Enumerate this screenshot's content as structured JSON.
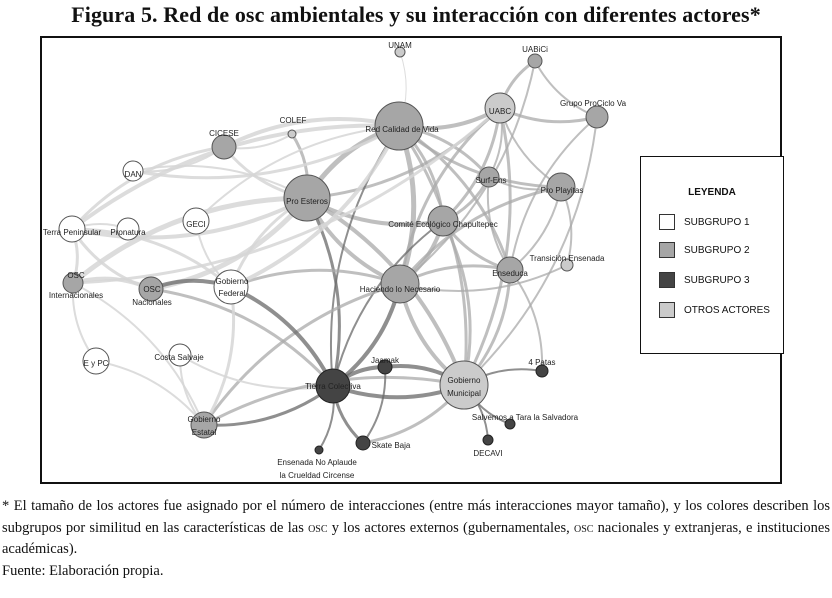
{
  "figure": {
    "title": "Figura 5. Red de osc ambientales y su interacción con diferentes actores*"
  },
  "colors": {
    "subgrupo_1": "#ffffff",
    "subgrupo_2": "#a6a6a6",
    "subgrupo_3": "#444444",
    "otros": "#cbcbcb",
    "edge_light": "#d6d6d6",
    "edge_mid": "#a9a9a9",
    "edge_dark": "#6a6a6a"
  },
  "legend": {
    "title": "LEYENDA",
    "items": [
      {
        "label": "SUBGRUPO 1",
        "group": "subgrupo_1"
      },
      {
        "label": "SUBGRUPO 2",
        "group": "subgrupo_2"
      },
      {
        "label": "SUBGRUPO 3",
        "group": "subgrupo_3"
      },
      {
        "label": "OTROS ACTORES",
        "group": "otros"
      }
    ]
  },
  "nodes": [
    {
      "id": "unam",
      "label": "UNAM",
      "group": "otros"
    },
    {
      "id": "uabici",
      "label": "UABiCi",
      "group": "subgrupo_2"
    },
    {
      "id": "uabc",
      "label": "UABC",
      "group": "otros"
    },
    {
      "id": "proci",
      "label": "Grupo ProCiclo Va",
      "group": "subgrupo_2"
    },
    {
      "id": "colef",
      "label": "COLEF",
      "group": "otros"
    },
    {
      "id": "rcv",
      "label": "Red Calidad de Vida",
      "group": "subgrupo_2"
    },
    {
      "id": "cicese",
      "label": "CICESE",
      "group": "subgrupo_2"
    },
    {
      "id": "dan",
      "label": "DAN",
      "group": "subgrupo_1"
    },
    {
      "id": "proest",
      "label": "Pro Esteros",
      "group": "subgrupo_2"
    },
    {
      "id": "surf",
      "label": "Surf-Ens",
      "group": "subgrupo_2"
    },
    {
      "id": "proplay",
      "label": "Pro Playitas",
      "group": "subgrupo_2"
    },
    {
      "id": "geci",
      "label": "GECI",
      "group": "subgrupo_1"
    },
    {
      "id": "terra",
      "label": "Terra Peninsular",
      "group": "subgrupo_1"
    },
    {
      "id": "pronat",
      "label": "Pronatura",
      "group": "subgrupo_1"
    },
    {
      "id": "comite",
      "label": "Comité Ecológico Chapultepec",
      "group": "subgrupo_2"
    },
    {
      "id": "trans",
      "label": "Transición Ensenada",
      "group": "otros"
    },
    {
      "id": "ensed",
      "label": "Enseduca",
      "group": "subgrupo_2"
    },
    {
      "id": "oscint",
      "label": "OSC Internacionales",
      "group": "subgrupo_2"
    },
    {
      "id": "oscnac",
      "label": "OSC Nacionales",
      "group": "subgrupo_2"
    },
    {
      "id": "gobfed",
      "label": "Gobierno Federal",
      "group": "subgrupo_1"
    },
    {
      "id": "hln",
      "label": "Haciendo lo Necesario",
      "group": "subgrupo_2"
    },
    {
      "id": "eypc",
      "label": "E y PC",
      "group": "subgrupo_1"
    },
    {
      "id": "costa",
      "label": "Costa Salvaje",
      "group": "subgrupo_1"
    },
    {
      "id": "jaamak",
      "label": "Jaamak",
      "group": "subgrupo_3"
    },
    {
      "id": "tierra",
      "label": "Tierra Colectiva",
      "group": "subgrupo_3"
    },
    {
      "id": "gobmun",
      "label": "Gobierno Municipal",
      "group": "otros"
    },
    {
      "id": "patas",
      "label": "4 Patas",
      "group": "subgrupo_3"
    },
    {
      "id": "salvemos",
      "label": "Salvemos a Tara la Salvadora",
      "group": "subgrupo_3"
    },
    {
      "id": "decavi",
      "label": "DECAVI",
      "group": "subgrupo_3"
    },
    {
      "id": "gobest",
      "label": "Gobierno Estatal",
      "group": "subgrupo_2"
    },
    {
      "id": "skate",
      "label": "Skate Baja",
      "group": "subgrupo_3"
    },
    {
      "id": "enap",
      "label": "Ensenada No Aplaude la Crueldad Circense",
      "group": "subgrupo_3"
    }
  ],
  "footnote": {
    "line1": "* El tamaño de los actores fue asignado por el número de interacciones (entre más interacciones mayor tamaño), y los colores describen los subgrupos por similitud en las características de las ",
    "osc1": "osc",
    "line2": " y los actores externos (gubernamentales, ",
    "osc2": "osc",
    "line3": " nacionales y extranjeras, e instituciones académicas).",
    "source": "Fuente: Elaboración propia."
  }
}
